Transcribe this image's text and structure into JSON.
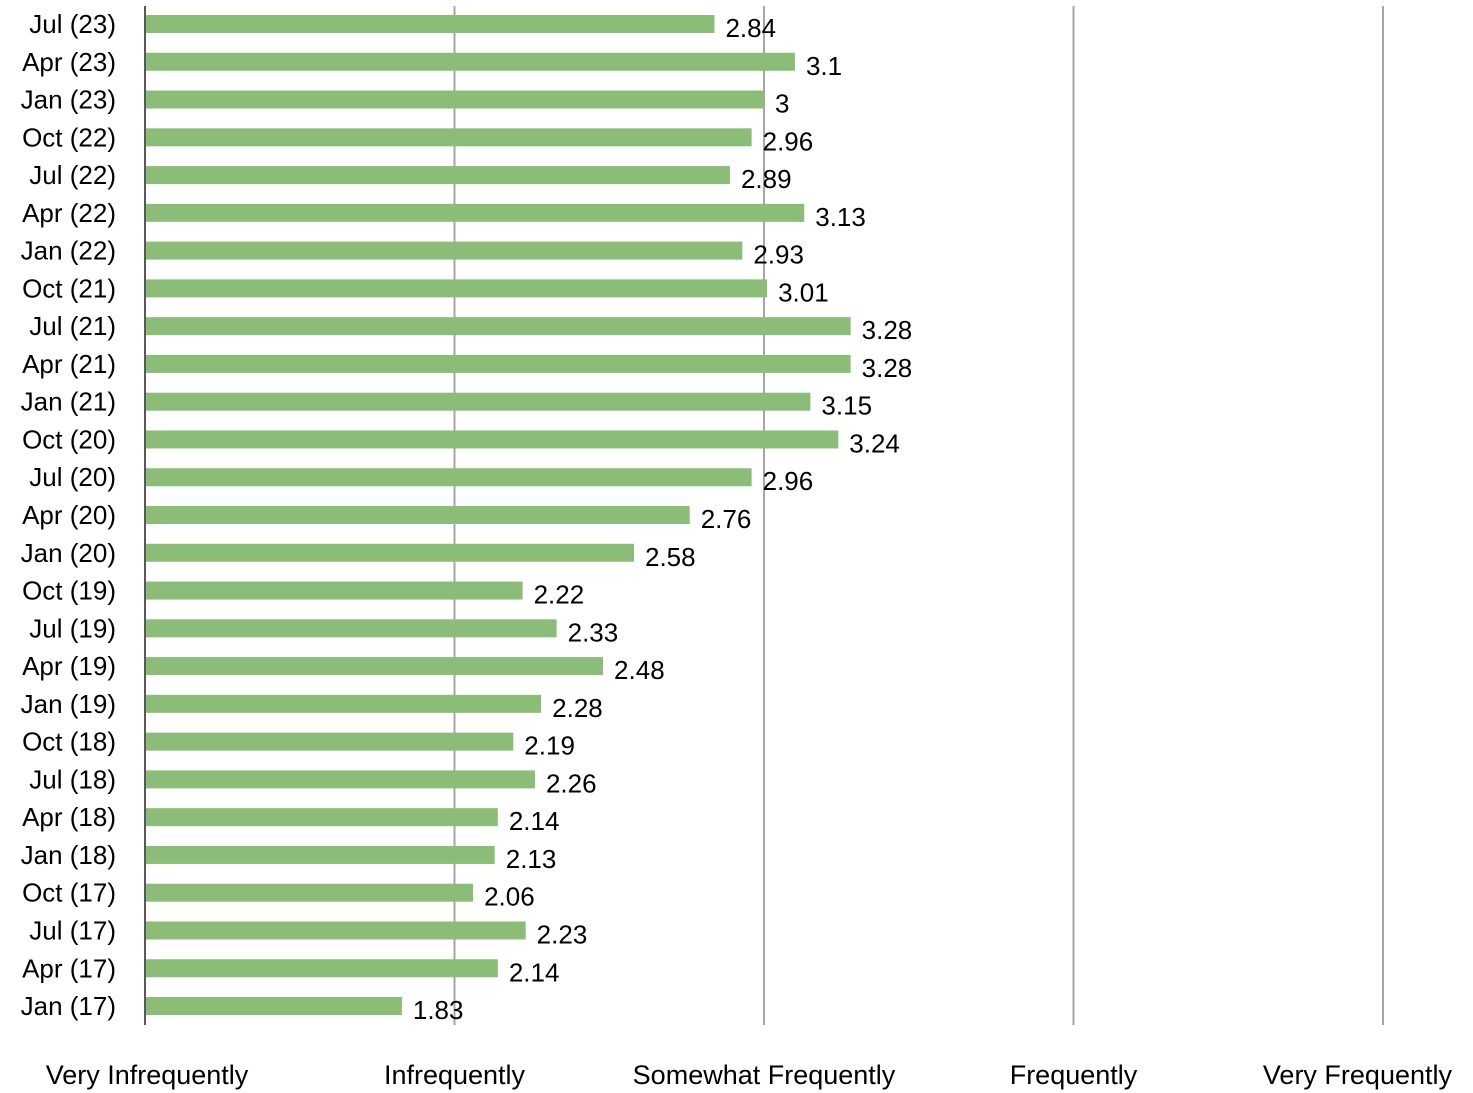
{
  "chart_data": {
    "type": "bar",
    "orientation": "horizontal",
    "categories": [
      "Jul (23)",
      "Apr (23)",
      "Jan (23)",
      "Oct (22)",
      "Jul (22)",
      "Apr (22)",
      "Jan (22)",
      "Oct (21)",
      "Jul (21)",
      "Apr (21)",
      "Jan (21)",
      "Oct (20)",
      "Jul (20)",
      "Apr (20)",
      "Jan (20)",
      "Oct (19)",
      "Jul (19)",
      "Apr (19)",
      "Jan (19)",
      "Oct (18)",
      "Jul (18)",
      "Apr (18)",
      "Jan (18)",
      "Oct (17)",
      "Jul (17)",
      "Apr (17)",
      "Jan (17)"
    ],
    "values": [
      2.84,
      3.1,
      3,
      2.96,
      2.89,
      3.13,
      2.93,
      3.01,
      3.28,
      3.28,
      3.15,
      3.24,
      2.96,
      2.76,
      2.58,
      2.22,
      2.33,
      2.48,
      2.28,
      2.19,
      2.26,
      2.14,
      2.13,
      2.06,
      2.23,
      2.14,
      1.83
    ],
    "value_labels": [
      "2.84",
      "3.1",
      "3",
      "2.96",
      "2.89",
      "3.13",
      "2.93",
      "3.01",
      "3.28",
      "3.28",
      "3.15",
      "3.24",
      "2.96",
      "2.76",
      "2.58",
      "2.22",
      "2.33",
      "2.48",
      "2.28",
      "2.19",
      "2.26",
      "2.14",
      "2.13",
      "2.06",
      "2.23",
      "2.14",
      "1.83"
    ],
    "xlim": [
      1,
      5
    ],
    "x_tick_values": [
      1,
      2,
      3,
      4,
      5
    ],
    "x_tick_labels": [
      "Very Infrequently",
      "Infrequently",
      "Somewhat Frequently",
      "Frequently",
      "Very Frequently"
    ],
    "grid": "vertical",
    "legend": "none",
    "title": "",
    "xlabel": "",
    "ylabel": ""
  },
  "colors": {
    "bar": "#8cbd78",
    "grid": "#a6a6a6",
    "axis": "#595959",
    "text": "#000000"
  }
}
